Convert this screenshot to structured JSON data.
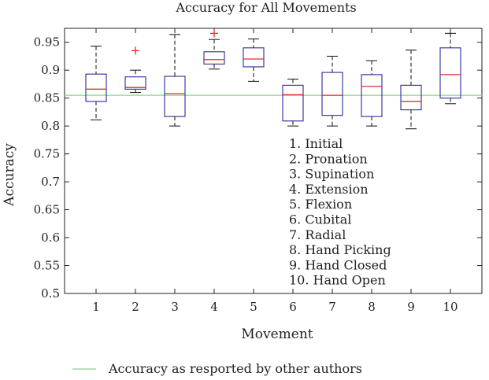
{
  "chart_data": {
    "type": "boxplot",
    "title": "Accuracy for All Movements",
    "xlabel": "Movement",
    "ylabel": "Accuracy",
    "ylim": [
      0.5,
      0.975
    ],
    "yticks": [
      "0.5",
      "0.55",
      "0.6",
      "0.65",
      "0.7",
      "0.75",
      "0.8",
      "0.85",
      "0.9",
      "0.95"
    ],
    "categories": [
      "1",
      "2",
      "3",
      "4",
      "5",
      "6",
      "7",
      "8",
      "9",
      "10"
    ],
    "boxes": [
      {
        "category": "1",
        "whisker_low": 0.811,
        "q1": 0.844,
        "median": 0.866,
        "q3": 0.893,
        "whisker_high": 0.943,
        "outliers": []
      },
      {
        "category": "2",
        "whisker_low": 0.86,
        "q1": 0.866,
        "median": 0.869,
        "q3": 0.888,
        "whisker_high": 0.9,
        "outliers": [
          0.935
        ]
      },
      {
        "category": "3",
        "whisker_low": 0.8,
        "q1": 0.817,
        "median": 0.858,
        "q3": 0.889,
        "whisker_high": 0.964,
        "outliers": []
      },
      {
        "category": "4",
        "whisker_low": 0.902,
        "q1": 0.911,
        "median": 0.919,
        "q3": 0.933,
        "whisker_high": 0.955,
        "outliers": [
          0.966
        ]
      },
      {
        "category": "5",
        "whisker_low": 0.88,
        "q1": 0.906,
        "median": 0.92,
        "q3": 0.94,
        "whisker_high": 0.956,
        "outliers": []
      },
      {
        "category": "6",
        "whisker_low": 0.8,
        "q1": 0.809,
        "median": 0.856,
        "q3": 0.873,
        "whisker_high": 0.884,
        "outliers": []
      },
      {
        "category": "7",
        "whisker_low": 0.8,
        "q1": 0.819,
        "median": 0.855,
        "q3": 0.896,
        "whisker_high": 0.925,
        "outliers": []
      },
      {
        "category": "8",
        "whisker_low": 0.8,
        "q1": 0.817,
        "median": 0.871,
        "q3": 0.892,
        "whisker_high": 0.917,
        "outliers": []
      },
      {
        "category": "9",
        "whisker_low": 0.795,
        "q1": 0.829,
        "median": 0.844,
        "q3": 0.873,
        "whisker_high": 0.936,
        "outliers": []
      },
      {
        "category": "10",
        "whisker_low": 0.84,
        "q1": 0.85,
        "median": 0.892,
        "q3": 0.94,
        "whisker_high": 0.966,
        "outliers": []
      }
    ],
    "reference_line": {
      "value": 0.855,
      "label": "Accuracy as resported by other authors"
    },
    "annotation_lines": [
      "1. Initial",
      "2. Pronation",
      "3. Supination",
      "4. Extension",
      "5. Flexion",
      "6. Cubital",
      "7. Radial",
      "8. Hand Picking",
      "9. Hand Closed",
      "10. Hand Open"
    ],
    "legend_position": "bottom",
    "grid": false,
    "colors": {
      "box": "#2b2b9a",
      "median": "#e03030",
      "outlier": "#e03030",
      "whisker": "#222222",
      "reference": "#8fd08f"
    }
  }
}
